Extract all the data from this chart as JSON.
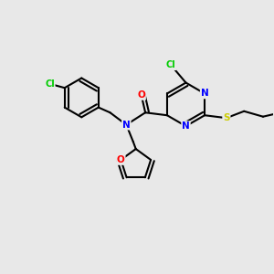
{
  "background_color": "#e8e8e8",
  "bond_color": "#000000",
  "atom_colors": {
    "Cl": "#00cc00",
    "N": "#0000ff",
    "O": "#ff0000",
    "S": "#cccc00",
    "C": "#000000"
  },
  "figsize": [
    3.0,
    3.0
  ],
  "dpi": 100
}
